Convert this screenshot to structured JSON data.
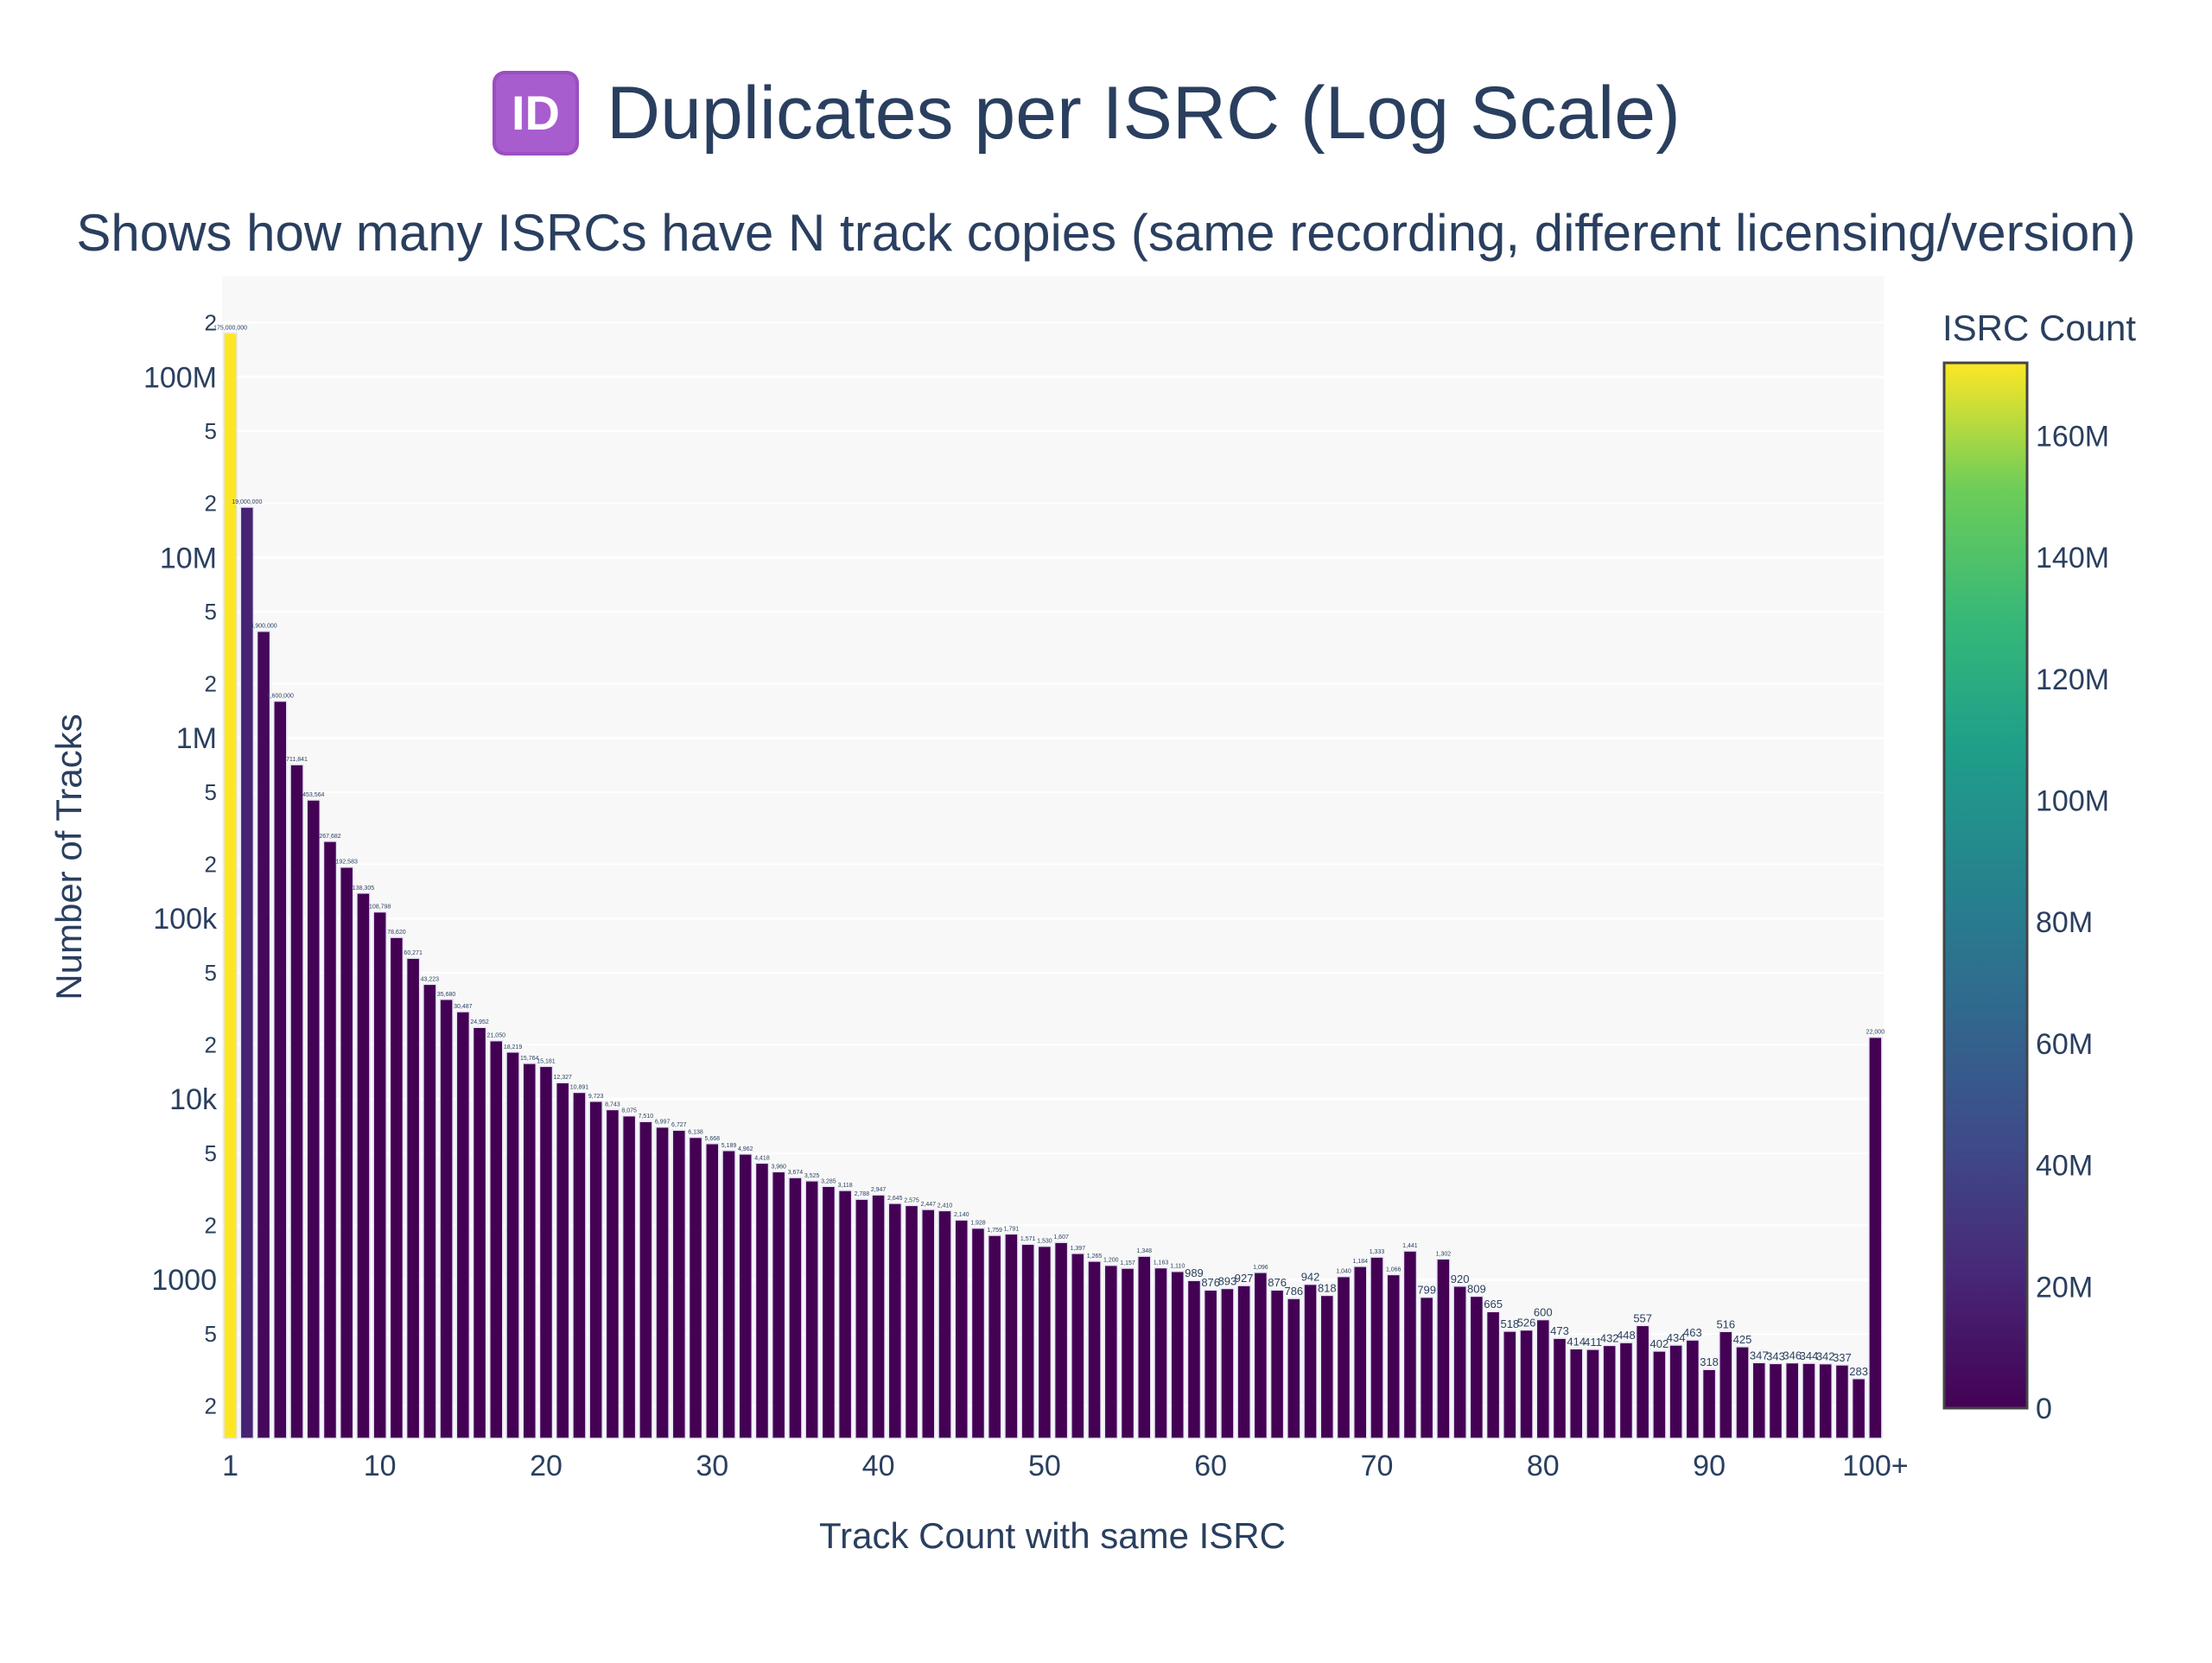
{
  "title": "Duplicates per ISRC (Log Scale)",
  "title_icon": "id-button-icon",
  "chart_data": {
    "type": "bar",
    "title": "Duplicates per ISRC (Log Scale)",
    "subtitle": "Shows how many ISRCs have N track copies (same recording, different licensing/version)",
    "xlabel": "Track Count with same ISRC",
    "ylabel": "Number of Tracks",
    "y_scale": "log",
    "ylim": [
      132,
      360000000
    ],
    "grid": true,
    "x_tick_labels": [
      "1",
      "10",
      "20",
      "30",
      "40",
      "50",
      "60",
      "70",
      "80",
      "90",
      "100+"
    ],
    "y_major_tick_labels": [
      "1000",
      "10k",
      "100k",
      "1M",
      "10M",
      "100M"
    ],
    "y_minor_tick_labels": [
      "2",
      "5"
    ],
    "categories": [
      "1",
      "2",
      "3",
      "4",
      "5",
      "6",
      "7",
      "8",
      "9",
      "10",
      "11",
      "12",
      "13",
      "14",
      "15",
      "16",
      "17",
      "18",
      "19",
      "20",
      "21",
      "22",
      "23",
      "24",
      "25",
      "26",
      "27",
      "28",
      "29",
      "30",
      "31",
      "32",
      "33",
      "34",
      "35",
      "36",
      "37",
      "38",
      "39",
      "40",
      "41",
      "42",
      "43",
      "44",
      "45",
      "46",
      "47",
      "48",
      "49",
      "50",
      "51",
      "52",
      "53",
      "54",
      "55",
      "56",
      "57",
      "58",
      "59",
      "60",
      "61",
      "62",
      "63",
      "64",
      "65",
      "66",
      "67",
      "68",
      "69",
      "70",
      "71",
      "72",
      "73",
      "74",
      "75",
      "76",
      "77",
      "78",
      "79",
      "80",
      "81",
      "82",
      "83",
      "84",
      "85",
      "86",
      "87",
      "88",
      "89",
      "90",
      "91",
      "92",
      "93",
      "94",
      "95",
      "96",
      "97",
      "98",
      "99",
      "100+"
    ],
    "values": [
      175000000,
      19000000,
      3900000,
      1600000,
      711841,
      453564,
      267682,
      192583,
      138305,
      108798,
      78620,
      60271,
      43223,
      35680,
      30487,
      24952,
      21050,
      18219,
      15764,
      15181,
      12327,
      10891,
      9723,
      8743,
      8075,
      7510,
      6997,
      6727,
      6138,
      5668,
      5189,
      4962,
      4418,
      3960,
      3674,
      3525,
      3285,
      3118,
      2788,
      2947,
      2645,
      2575,
      2447,
      2410,
      2140,
      1928,
      1759,
      1791,
      1571,
      1530,
      1607,
      1397,
      1265,
      1200,
      1157,
      1348,
      1163,
      1110,
      989,
      876,
      893,
      927,
      1096,
      876,
      786,
      942,
      818,
      1040,
      1184,
      1333,
      1066,
      1441,
      799,
      1302,
      920,
      809,
      665,
      518,
      526,
      600,
      473,
      414,
      411,
      432,
      448,
      557,
      402,
      434,
      463,
      318,
      516,
      425,
      347,
      343,
      346,
      344,
      342,
      337,
      283,
      22000
    ],
    "colorscale": "viridis",
    "colorbar": {
      "title": "ISRC Count",
      "range": [
        0,
        172000000
      ],
      "tick_labels": [
        "0",
        "20M",
        "40M",
        "60M",
        "80M",
        "100M",
        "120M",
        "140M",
        "160M"
      ],
      "tick_values": [
        0,
        20000000,
        40000000,
        60000000,
        80000000,
        100000000,
        120000000,
        140000000,
        160000000
      ]
    },
    "colors": {
      "plot_bg": "#f8f8f8",
      "text": "#2a3f5f",
      "grid": "#ffffff"
    }
  }
}
